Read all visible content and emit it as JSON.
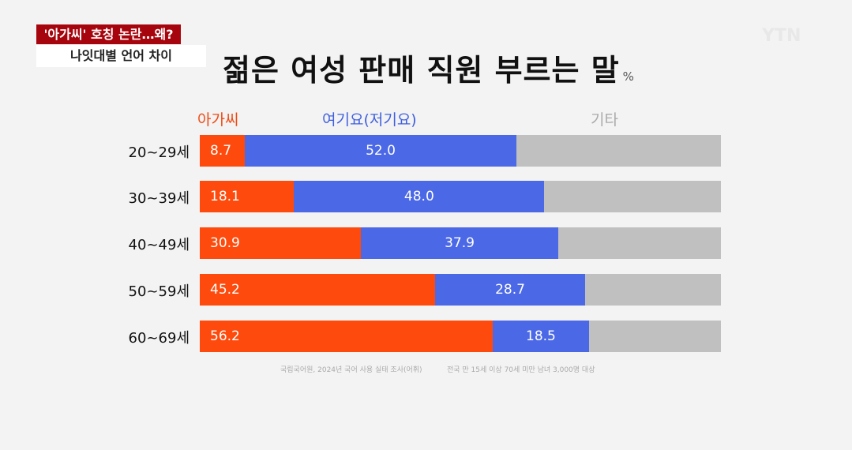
{
  "header": {
    "tag": "'아가씨' 호칭 논란…왜?",
    "subtag": "나잇대별 언어 차이",
    "logo": "YTN"
  },
  "chart_data": {
    "type": "bar",
    "stacked": true,
    "orientation": "horizontal",
    "title": "젊은 여성 판매 직원 부르는 말",
    "unit": "%",
    "categories": [
      "20~29세",
      "30~39세",
      "40~49세",
      "50~59세",
      "60~69세"
    ],
    "series": [
      {
        "name": "아가씨",
        "color": "#fe4a0c",
        "values": [
          8.7,
          18.1,
          30.9,
          45.2,
          56.2
        ]
      },
      {
        "name": "여기요(저기요)",
        "color": "#4b68e6",
        "values": [
          52.0,
          48.0,
          37.9,
          28.7,
          18.5
        ]
      },
      {
        "name": "기타",
        "color": "#c0c0c0",
        "values": [
          39.3,
          33.9,
          31.2,
          26.1,
          25.3
        ]
      }
    ],
    "xlim": [
      0,
      100
    ],
    "sources": [
      "국립국어원, 2024년 국어 사용 실태 조사(어휘)",
      "전국 만 15세 이상 70세 미만 남녀 3,000명 대상"
    ]
  }
}
